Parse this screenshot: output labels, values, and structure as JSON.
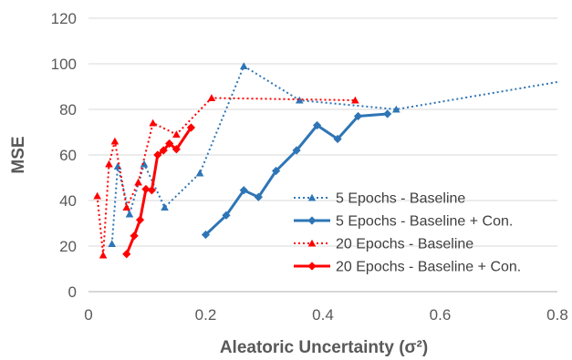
{
  "chart_data": {
    "type": "line",
    "title": "",
    "xlabel": "Aleatoric Uncertainty (σ²)",
    "ylabel": "MSE",
    "xlim": [
      0,
      0.8
    ],
    "ylim": [
      0,
      120
    ],
    "x_ticks": [
      0,
      0.2,
      0.4,
      0.6,
      0.8
    ],
    "x_tick_labels": [
      "0",
      "0.2",
      "0.4",
      "0.6",
      "0.8"
    ],
    "y_ticks": [
      0,
      20,
      40,
      60,
      80,
      100,
      120
    ],
    "y_tick_labels": [
      "0",
      "20",
      "40",
      "60",
      "80",
      "100",
      "120"
    ],
    "grid": "horizontal",
    "legend_position": "bottom-right",
    "series": [
      {
        "name": "5 Epochs - Baseline",
        "color": "#2E75B6",
        "line_style": "dotted",
        "marker": "triangle",
        "points": [
          [
            0.04,
            21
          ],
          [
            0.05,
            55
          ],
          [
            0.07,
            34
          ],
          [
            0.095,
            56
          ],
          [
            0.13,
            37
          ],
          [
            0.19,
            52
          ],
          [
            0.265,
            99
          ],
          [
            0.36,
            84
          ],
          [
            0.525,
            80
          ],
          [
            0.8,
            92
          ]
        ],
        "marker_count": 9
      },
      {
        "name": "5 Epochs - Baseline + Con.",
        "color": "#2E75B6",
        "line_style": "solid",
        "marker": "diamond",
        "points": [
          [
            0.2,
            25
          ],
          [
            0.235,
            33.5
          ],
          [
            0.265,
            44.5
          ],
          [
            0.29,
            41.5
          ],
          [
            0.32,
            53
          ],
          [
            0.355,
            62
          ],
          [
            0.39,
            73
          ],
          [
            0.425,
            67
          ],
          [
            0.46,
            77
          ],
          [
            0.51,
            78
          ]
        ],
        "marker_count": 10
      },
      {
        "name": "20 Epochs - Baseline",
        "color": "#FF0000",
        "line_style": "dotted",
        "marker": "triangle",
        "points": [
          [
            0.015,
            42
          ],
          [
            0.025,
            16
          ],
          [
            0.035,
            56
          ],
          [
            0.045,
            66
          ],
          [
            0.065,
            37
          ],
          [
            0.085,
            48
          ],
          [
            0.11,
            74
          ],
          [
            0.15,
            69
          ],
          [
            0.21,
            85
          ],
          [
            0.455,
            84
          ]
        ],
        "marker_count": 10
      },
      {
        "name": "20 Epochs - Baseline + Con.",
        "color": "#FF0000",
        "line_style": "solid",
        "marker": "diamond",
        "points": [
          [
            0.065,
            16.5
          ],
          [
            0.078,
            24.5
          ],
          [
            0.088,
            31.5
          ],
          [
            0.098,
            45
          ],
          [
            0.108,
            44.5
          ],
          [
            0.118,
            60
          ],
          [
            0.128,
            62
          ],
          [
            0.138,
            65
          ],
          [
            0.15,
            62.5
          ],
          [
            0.175,
            72
          ]
        ],
        "marker_count": 10
      }
    ]
  }
}
